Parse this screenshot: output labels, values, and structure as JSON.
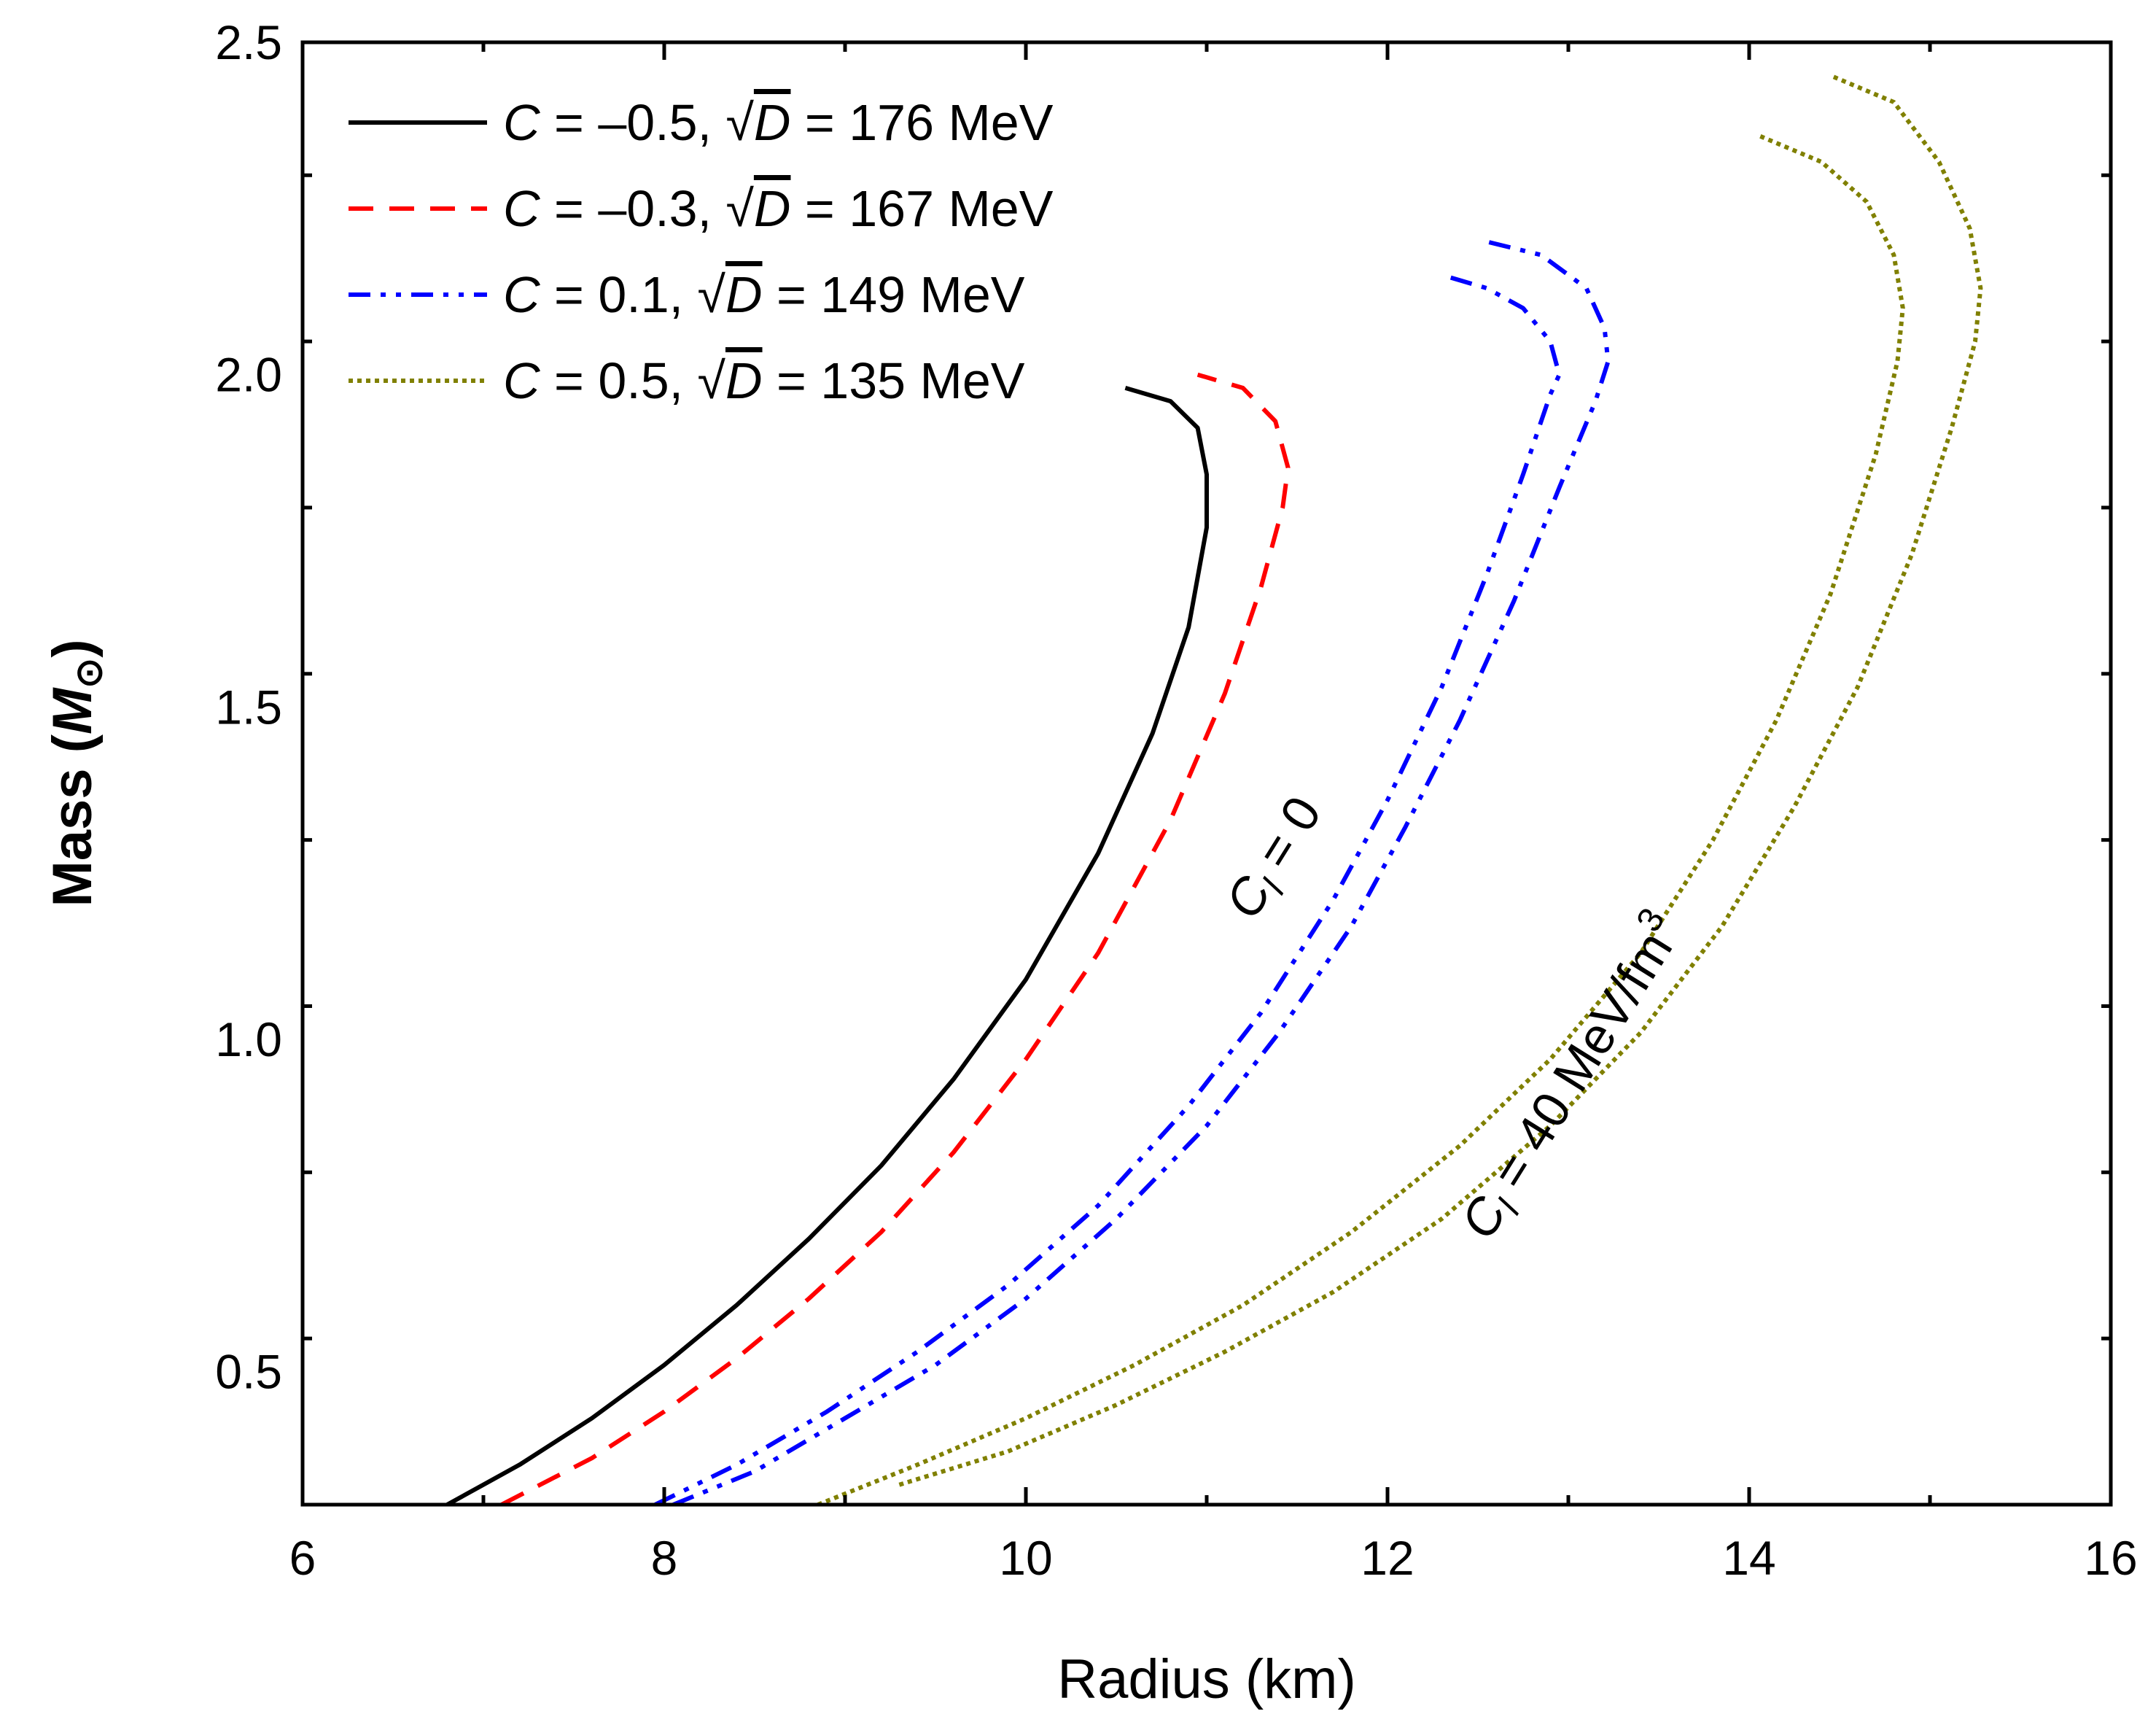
{
  "chart_data": {
    "type": "line",
    "title": "",
    "xlabel": "Radius (km)",
    "ylabel": {
      "prefix": "Mass (",
      "symbol": "M",
      "subscript": "⊙",
      "suffix": ")"
    },
    "xlim": [
      6,
      16
    ],
    "ylim": [
      0.3,
      2.5
    ],
    "xticks": [
      {
        "value": 6,
        "label": "6"
      },
      {
        "value": 8,
        "label": "8"
      },
      {
        "value": 10,
        "label": "10"
      },
      {
        "value": 12,
        "label": "12"
      },
      {
        "value": 14,
        "label": "14"
      },
      {
        "value": 16,
        "label": "16"
      }
    ],
    "yticks": [
      {
        "value": 0.5,
        "label": "0.5"
      },
      {
        "value": 1.0,
        "label": "1.0"
      },
      {
        "value": 1.5,
        "label": "1.5"
      },
      {
        "value": 2.0,
        "label": "2.0"
      },
      {
        "value": 2.5,
        "label": "2.5"
      }
    ],
    "legend_position": "top-left",
    "series": [
      {
        "name": "C = −0.5, √D = 176 MeV",
        "label_parts": [
          "C",
          " = –0.5, ",
          "√",
          "D",
          " = 176 MeV"
        ],
        "color": "#000000",
        "style": "solid",
        "curves": [
          {
            "x": [
              6.8,
              7.2,
              7.6,
              8.0,
              8.4,
              8.8,
              9.2,
              9.6,
              10.0,
              10.4,
              10.7,
              10.9,
              11.0,
              11.0,
              10.95,
              10.8,
              10.55
            ],
            "y": [
              0.3,
              0.36,
              0.43,
              0.51,
              0.6,
              0.7,
              0.81,
              0.94,
              1.09,
              1.28,
              1.46,
              1.62,
              1.77,
              1.85,
              1.92,
              1.96,
              1.98
            ]
          }
        ]
      },
      {
        "name": "C = −0.3, √D = 167 MeV",
        "label_parts": [
          "C",
          " = –0.3, ",
          "√",
          "D",
          " = 167 MeV"
        ],
        "color": "#ff0000",
        "style": "dashed",
        "curves": [
          {
            "x": [
              7.1,
              7.6,
              8.0,
              8.4,
              8.8,
              9.2,
              9.6,
              10.0,
              10.4,
              10.8,
              11.1,
              11.3,
              11.42,
              11.45,
              11.38,
              11.2,
              10.95
            ],
            "y": [
              0.3,
              0.37,
              0.44,
              0.52,
              0.61,
              0.71,
              0.83,
              0.97,
              1.13,
              1.33,
              1.52,
              1.68,
              1.8,
              1.86,
              1.93,
              1.98,
              2.0
            ]
          }
        ]
      },
      {
        "name": "C = 0.1, √D = 149 MeV",
        "label_parts": [
          "C",
          " = 0.1, ",
          "√",
          "D",
          " = 149 MeV"
        ],
        "color": "#0000ff",
        "style": "dashdotdot",
        "curves": [
          {
            "x": [
              7.95,
              8.4,
              8.9,
              9.4,
              9.9,
              10.4,
              10.9,
              11.3,
              11.7,
              12.0,
              12.3,
              12.55,
              12.75,
              12.9,
              12.95,
              12.9,
              12.75,
              12.55,
              12.3
            ],
            "y": [
              0.3,
              0.36,
              0.44,
              0.53,
              0.63,
              0.75,
              0.9,
              1.04,
              1.21,
              1.36,
              1.53,
              1.7,
              1.85,
              1.97,
              2.0,
              2.05,
              2.1,
              2.13,
              2.15
            ]
          },
          {
            "x": [
              8.05,
              8.5,
              9.0,
              9.5,
              10.0,
              10.5,
              11.0,
              11.4,
              11.8,
              12.1,
              12.4,
              12.7,
              12.95,
              13.15,
              13.22,
              13.2,
              13.1,
              12.85,
              12.55
            ],
            "y": [
              0.3,
              0.35,
              0.43,
              0.51,
              0.61,
              0.73,
              0.87,
              1.01,
              1.17,
              1.32,
              1.48,
              1.66,
              1.83,
              1.96,
              2.02,
              2.07,
              2.13,
              2.18,
              2.2
            ]
          }
        ]
      },
      {
        "name": "C = 0.5, √D = 135 MeV",
        "label_parts": [
          "C",
          " = 0.5, ",
          "√",
          "D",
          " = 135 MeV"
        ],
        "color": "#808000",
        "style": "dotted",
        "curves": [
          {
            "x": [
              8.85,
              9.4,
              10.0,
              10.6,
              11.2,
              11.8,
              12.4,
              12.9,
              13.4,
              13.8,
              14.15,
              14.45,
              14.7,
              14.82,
              14.85,
              14.8,
              14.65,
              14.4,
              14.05
            ],
            "y": [
              0.3,
              0.36,
              0.43,
              0.51,
              0.6,
              0.71,
              0.84,
              0.97,
              1.13,
              1.3,
              1.48,
              1.67,
              1.88,
              2.02,
              2.1,
              2.18,
              2.26,
              2.32,
              2.36
            ]
          },
          {
            "x": [
              9.3,
              9.9,
              10.5,
              11.1,
              11.7,
              12.3,
              12.9,
              13.4,
              13.85,
              14.25,
              14.6,
              14.9,
              15.12,
              15.25,
              15.28,
              15.22,
              15.05,
              14.8,
              14.45
            ],
            "y": [
              0.33,
              0.38,
              0.45,
              0.53,
              0.62,
              0.73,
              0.87,
              1.01,
              1.17,
              1.35,
              1.53,
              1.73,
              1.92,
              2.05,
              2.13,
              2.22,
              2.32,
              2.41,
              2.45
            ]
          }
        ]
      }
    ],
    "annotations": [
      {
        "base": "C",
        "sub": "l",
        "rest": " = 0",
        "x": 11.45,
        "y": 1.26,
        "angle": -58
      },
      {
        "base": "C",
        "sub": "l",
        "rest": " = 40 MeV/fm",
        "sup": "3",
        "x": 13.1,
        "y": 0.93,
        "angle": -58
      }
    ]
  }
}
